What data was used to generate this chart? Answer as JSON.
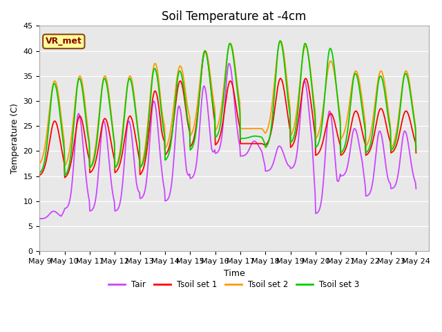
{
  "title": "Soil Temperature at -4cm",
  "xlabel": "Time",
  "ylabel": "Temperature (C)",
  "ylim": [
    0,
    45
  ],
  "x_tick_labels": [
    "May 9",
    "May 10",
    "May 11",
    "May 12",
    "May 13",
    "May 14",
    "May 15",
    "May 16",
    "May 17",
    "May 18",
    "May 19",
    "May 20",
    "May 21",
    "May 22",
    "May 23",
    "May 24"
  ],
  "annotation_text": "VR_met",
  "annotation_box_color": "#FFFF99",
  "annotation_text_color": "#8B0000",
  "annotation_edge_color": "#8B4513",
  "colors": {
    "Tair": "#CC44FF",
    "Tsoil1": "#FF0000",
    "Tsoil2": "#FF9900",
    "Tsoil3": "#00CC00"
  },
  "legend_labels": [
    "Tair",
    "Tsoil set 1",
    "Tsoil set 2",
    "Tsoil set 3"
  ],
  "background_plot": "#E8E8E8",
  "background_band1": "#DCDCDC",
  "background_band2": "#E8E8E8",
  "title_fontsize": 12,
  "axis_label_fontsize": 9,
  "tick_fontsize": 8,
  "linewidth": 1.3
}
